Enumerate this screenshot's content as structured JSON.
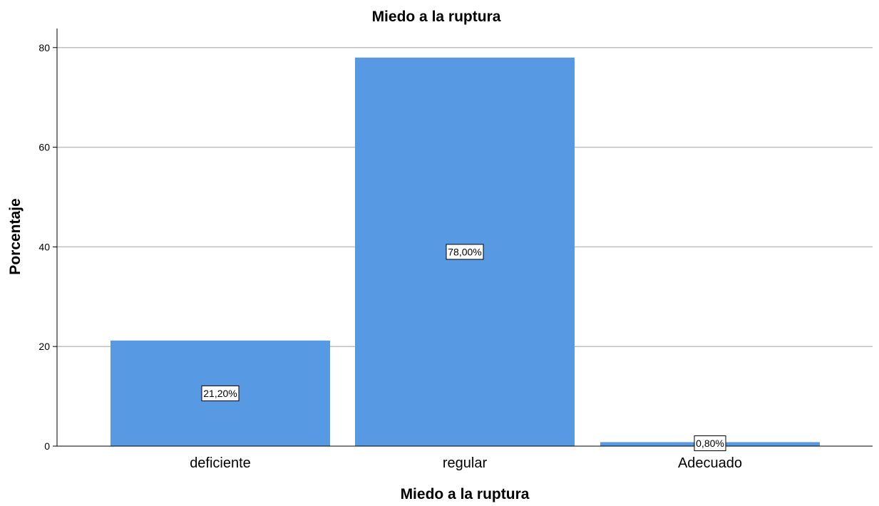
{
  "chart_data": {
    "type": "bar",
    "title": "Miedo a la ruptura",
    "xlabel": "Miedo a la ruptura",
    "ylabel": "Porcentaje",
    "categories": [
      "deficiente",
      "regular",
      "Adecuado"
    ],
    "values": [
      21.2,
      78.0,
      0.8
    ],
    "data_labels": [
      "21,20%",
      "78,00%",
      "0,80%"
    ],
    "ylim": [
      0,
      84
    ],
    "yticks": [
      0,
      20,
      40,
      60,
      80
    ],
    "ytick_labels": [
      "0",
      "20",
      "40",
      "60",
      "80"
    ],
    "grid": true,
    "bar_color": "#5899e4",
    "grid_color": "#bfbfbf"
  }
}
